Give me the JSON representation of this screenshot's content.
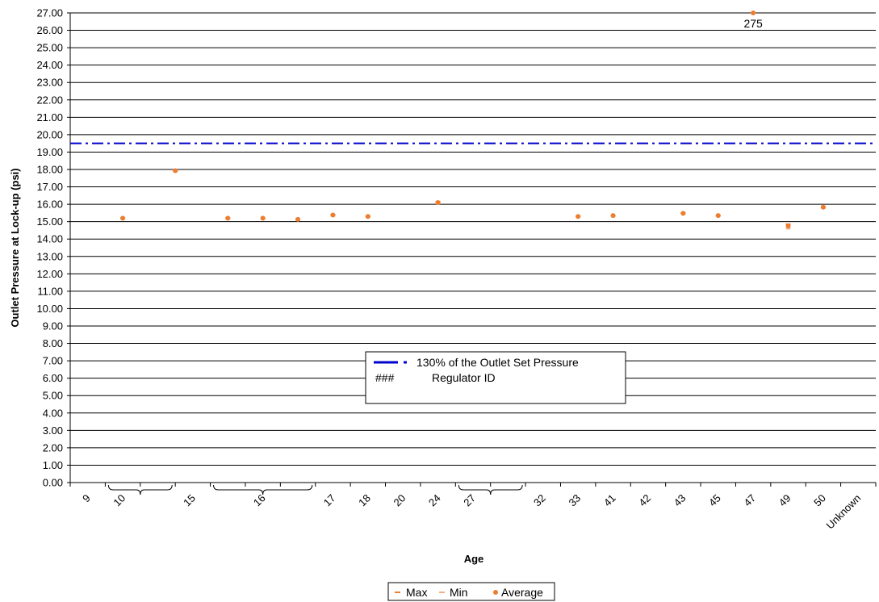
{
  "chart_data": {
    "type": "scatter",
    "title": "",
    "xlabel": "Age",
    "ylabel": "Outlet Pressure at Lock-up (psi)",
    "ylim": [
      0,
      27
    ],
    "y_tick_step": 1,
    "y_tick_format": "0.00",
    "grid": "horizontal",
    "categories": [
      "9",
      "10",
      "",
      "15",
      "",
      "16",
      "",
      "17",
      "18",
      "20",
      "24",
      "27",
      "",
      "32",
      "33",
      "41",
      "42",
      "43",
      "45",
      "47",
      "49",
      "50",
      "Unknown"
    ],
    "category_braces": [
      {
        "from": 1,
        "to": 2
      },
      {
        "from": 4,
        "to": 6
      },
      {
        "from": 11,
        "to": 12
      }
    ],
    "series": [
      {
        "name": "Max",
        "marker": "dash",
        "color": "#ED7D31",
        "points": [
          {
            "x": 1.5,
            "y": 15.2
          },
          {
            "x": 3,
            "y": 17.95
          },
          {
            "x": 4.5,
            "y": 15.2
          },
          {
            "x": 5.5,
            "y": 15.2
          },
          {
            "x": 6.5,
            "y": 15.15
          },
          {
            "x": 7.5,
            "y": 15.4
          },
          {
            "x": 8.5,
            "y": 15.3
          },
          {
            "x": 10.5,
            "y": 16.15
          },
          {
            "x": 14.5,
            "y": 15.3
          },
          {
            "x": 15.5,
            "y": 15.35
          },
          {
            "x": 17.5,
            "y": 15.5
          },
          {
            "x": 18.5,
            "y": 15.35
          },
          {
            "x": 19.5,
            "y": 27.0
          },
          {
            "x": 20.5,
            "y": 14.85
          },
          {
            "x": 21.5,
            "y": 15.85
          }
        ]
      },
      {
        "name": "Min",
        "marker": "dash",
        "color": "#F4B183",
        "points": [
          {
            "x": 1.5,
            "y": 15.2
          },
          {
            "x": 3,
            "y": 17.9
          },
          {
            "x": 4.5,
            "y": 15.2
          },
          {
            "x": 5.5,
            "y": 15.2
          },
          {
            "x": 6.5,
            "y": 15.1
          },
          {
            "x": 7.5,
            "y": 15.35
          },
          {
            "x": 8.5,
            "y": 15.3
          },
          {
            "x": 10.5,
            "y": 16.05
          },
          {
            "x": 14.5,
            "y": 15.3
          },
          {
            "x": 15.5,
            "y": 15.35
          },
          {
            "x": 17.5,
            "y": 15.45
          },
          {
            "x": 18.5,
            "y": 15.35
          },
          {
            "x": 19.5,
            "y": 27.0
          },
          {
            "x": 20.5,
            "y": 14.6
          },
          {
            "x": 21.5,
            "y": 15.8
          }
        ]
      },
      {
        "name": "Average",
        "marker": "dot",
        "color": "#ED7D31",
        "points": [
          {
            "x": 1.5,
            "y": 15.2
          },
          {
            "x": 3,
            "y": 17.93
          },
          {
            "x": 4.5,
            "y": 15.2
          },
          {
            "x": 5.5,
            "y": 15.2
          },
          {
            "x": 6.5,
            "y": 15.13
          },
          {
            "x": 7.5,
            "y": 15.38
          },
          {
            "x": 8.5,
            "y": 15.3
          },
          {
            "x": 10.5,
            "y": 16.1
          },
          {
            "x": 14.5,
            "y": 15.3
          },
          {
            "x": 15.5,
            "y": 15.35
          },
          {
            "x": 17.5,
            "y": 15.48
          },
          {
            "x": 18.5,
            "y": 15.35
          },
          {
            "x": 19.5,
            "y": 27.0
          },
          {
            "x": 20.5,
            "y": 14.75
          },
          {
            "x": 21.5,
            "y": 15.83
          }
        ]
      }
    ],
    "reference_line": {
      "name": "130% of the Outlet Set Pressure",
      "y": 19.5,
      "color": "#0000CC",
      "style": "dash-dot"
    },
    "annotations": [
      {
        "text": "275",
        "x": 19.5,
        "y": 27.0
      }
    ],
    "legend_box": {
      "items": [
        {
          "symbol": "dash-dot-line",
          "text": "130% of the Outlet Set Pressure"
        },
        {
          "symbol": "###",
          "text": "Regulator ID"
        }
      ]
    },
    "legend_bottom": [
      "Max",
      "Min",
      "Average"
    ]
  }
}
